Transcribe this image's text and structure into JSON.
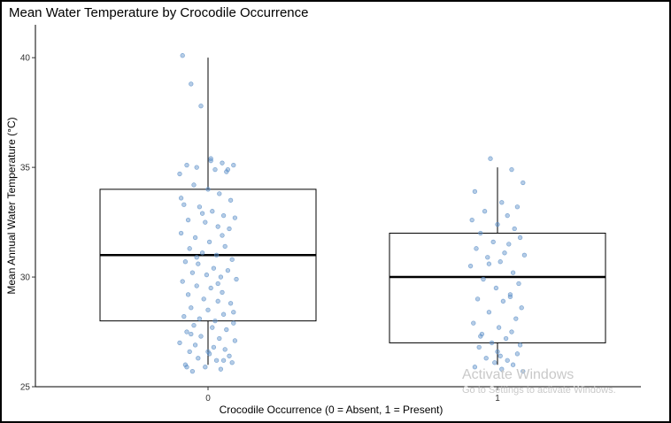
{
  "chart_data": {
    "type": "boxplot",
    "title": "Mean Water Temperature by Crocodile Occurrence",
    "xlabel": "Crocodile Occurrence (0 = Absent, 1 = Present)",
    "ylabel": "Mean Annual Water Temperature (°C)",
    "categories": [
      "0",
      "1"
    ],
    "ylim": [
      25,
      41.5
    ],
    "yticks": [
      25,
      30,
      35,
      40
    ],
    "grid": false,
    "point_color": "#5b8fc7",
    "box_stats": [
      {
        "category": "0",
        "min": 26,
        "q1": 28,
        "median": 31,
        "q3": 34,
        "max": 40
      },
      {
        "category": "1",
        "min": 26,
        "q1": 27,
        "median": 30,
        "q3": 32,
        "max": 35
      }
    ],
    "points": [
      {
        "category": "0",
        "jitter": [
          -0.18,
          -0.12,
          -0.05,
          0.02,
          0.1,
          0.18,
          -0.15,
          -0.08,
          0.05,
          0.13,
          -0.2,
          -0.1,
          0.0,
          0.08,
          0.16,
          -0.17,
          -0.06,
          0.03,
          0.11,
          0.19,
          -0.14,
          -0.02,
          0.07,
          0.15,
          -0.19,
          -0.09,
          0.01,
          0.12,
          -0.13,
          -0.04,
          0.06,
          0.17,
          -0.16,
          -0.07,
          0.04,
          0.14,
          -0.11,
          -0.01,
          0.09,
          0.2,
          -0.18,
          -0.08,
          0.02,
          0.1,
          -0.14,
          -0.03,
          0.07,
          0.16,
          -0.12,
          0.0,
          0.11,
          -0.17,
          -0.06,
          0.05,
          0.18,
          -0.1,
          0.03,
          0.13,
          -0.15,
          -0.05,
          0.08,
          0.19,
          -0.2,
          -0.09,
          0.04,
          0.12,
          -0.13,
          0.01,
          0.15,
          -0.07,
          0.06,
          0.17,
          -0.16,
          -0.02,
          0.09,
          -0.11,
          0.02,
          0.14,
          -0.19,
          -0.04,
          0.1,
          -0.08,
          0.07,
          0.18,
          -0.12,
          0.0,
          0.11,
          -0.15
        ],
        "values": [
          40.1,
          38.8,
          37.8,
          35.3,
          35.2,
          35.1,
          35.1,
          35.0,
          34.9,
          34.8,
          34.7,
          34.2,
          34.0,
          33.8,
          33.5,
          33.3,
          33.2,
          33.0,
          32.8,
          32.7,
          32.6,
          32.5,
          32.3,
          32.2,
          32.0,
          31.8,
          31.6,
          31.4,
          31.3,
          31.1,
          31.0,
          30.8,
          30.7,
          30.6,
          30.4,
          30.3,
          30.2,
          30.1,
          30.0,
          29.9,
          29.8,
          29.6,
          29.5,
          29.3,
          29.2,
          29.0,
          28.9,
          28.8,
          28.6,
          28.5,
          28.3,
          28.2,
          28.1,
          28.0,
          27.9,
          27.8,
          27.7,
          27.6,
          27.5,
          27.3,
          27.2,
          27.1,
          27.0,
          26.9,
          26.8,
          26.7,
          26.6,
          26.5,
          26.4,
          26.3,
          26.2,
          26.1,
          26.0,
          25.9,
          25.8,
          25.7,
          35.4,
          34.9,
          33.6,
          32.9,
          31.9,
          30.9,
          29.7,
          28.4,
          27.4,
          26.6,
          26.2,
          25.9
        ]
      },
      {
        "category": "1",
        "jitter": [
          -0.05,
          0.1,
          0.18,
          -0.16,
          0.03,
          0.14,
          -0.09,
          0.07,
          -0.18,
          0.0,
          0.12,
          -0.12,
          0.16,
          -0.03,
          0.08,
          -0.15,
          0.05,
          0.19,
          -0.07,
          0.02,
          -0.19,
          0.11,
          -0.1,
          0.15,
          -0.01,
          0.09,
          -0.14,
          0.04,
          0.17,
          -0.06,
          0.13,
          -0.17,
          0.01,
          0.1,
          -0.11,
          0.06,
          -0.04,
          0.16,
          -0.13,
          0.0,
          0.14,
          -0.08,
          0.07,
          -0.02,
          0.11,
          -0.16,
          0.03,
          0.18,
          -0.06,
          0.09,
          -0.12,
          0.02
        ],
        "values": [
          35.4,
          34.9,
          34.3,
          33.9,
          33.4,
          33.2,
          33.0,
          32.8,
          32.6,
          32.4,
          32.2,
          32.0,
          31.8,
          31.6,
          31.5,
          31.3,
          31.1,
          31.0,
          30.9,
          30.7,
          30.5,
          30.2,
          29.9,
          29.7,
          29.5,
          29.2,
          29.0,
          28.9,
          28.6,
          28.4,
          28.1,
          27.9,
          27.7,
          27.5,
          27.4,
          27.2,
          27.0,
          26.9,
          26.8,
          26.6,
          26.5,
          26.3,
          26.2,
          26.1,
          26.0,
          25.9,
          25.8,
          25.7,
          30.6,
          29.1,
          27.3,
          26.4
        ]
      }
    ]
  },
  "watermark": {
    "title": "Activate Windows",
    "subtitle": "Go to Settings to activate Windows."
  }
}
